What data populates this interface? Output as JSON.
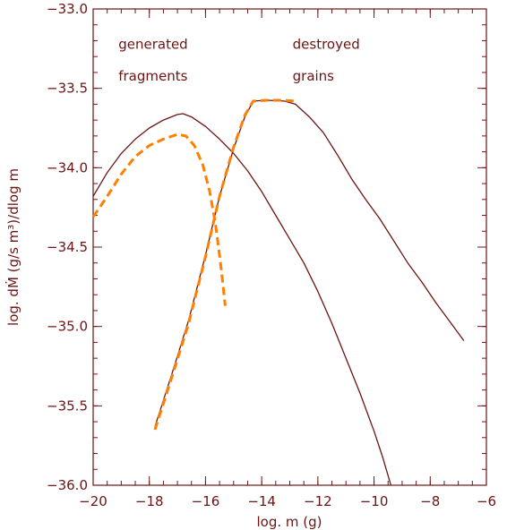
{
  "chart_data": {
    "type": "line",
    "title": "",
    "xlabel": "log. m (g)",
    "ylabel": "log. dṀ (g/s m³)/dlog m",
    "xlim": [
      -20,
      -6
    ],
    "ylim": [
      -36.0,
      -33.0
    ],
    "x_ticks": [
      -20,
      -18,
      -16,
      -14,
      -12,
      -10,
      -8,
      -6
    ],
    "x_tick_labels": [
      "−20",
      "−18",
      "−16",
      "−14",
      "−12",
      "−10",
      "−8",
      "−6"
    ],
    "y_ticks": [
      -33.0,
      -33.5,
      -34.0,
      -34.5,
      -35.0,
      -35.5,
      -36.0
    ],
    "y_tick_labels": [
      "−33.0",
      "−33.5",
      "−34.0",
      "−34.5",
      "−35.0",
      "−35.5",
      "−36.0"
    ],
    "grid": false,
    "annotations": [
      {
        "text": "generated",
        "x": -19.1,
        "y": -33.25
      },
      {
        "text": "fragments",
        "x": -19.1,
        "y": -33.45
      },
      {
        "text": "destroyed",
        "x": -12.9,
        "y": -33.25
      },
      {
        "text": "grains",
        "x": -12.9,
        "y": -33.45
      }
    ],
    "series": [
      {
        "style": "solid",
        "color": "#6b1414",
        "points": [
          [
            -20.0,
            -34.18
          ],
          [
            -19.5,
            -34.03
          ],
          [
            -19.0,
            -33.91
          ],
          [
            -18.5,
            -33.82
          ],
          [
            -18.0,
            -33.75
          ],
          [
            -17.5,
            -33.7
          ],
          [
            -17.0,
            -33.665
          ],
          [
            -16.8,
            -33.66
          ],
          [
            -16.5,
            -33.68
          ],
          [
            -16.0,
            -33.74
          ],
          [
            -15.5,
            -33.82
          ],
          [
            -15.0,
            -33.91
          ],
          [
            -14.5,
            -34.02
          ],
          [
            -14.0,
            -34.15
          ],
          [
            -13.5,
            -34.3
          ],
          [
            -13.0,
            -34.45
          ],
          [
            -12.5,
            -34.6
          ],
          [
            -12.0,
            -34.78
          ],
          [
            -11.5,
            -34.98
          ],
          [
            -11.0,
            -35.2
          ],
          [
            -10.5,
            -35.42
          ],
          [
            -10.0,
            -35.66
          ],
          [
            -9.7,
            -35.82
          ],
          [
            -9.4,
            -36.0
          ]
        ]
      },
      {
        "style": "solid",
        "color": "#6b1414",
        "points": [
          [
            -17.8,
            -35.63
          ],
          [
            -17.2,
            -35.3
          ],
          [
            -16.6,
            -34.96
          ],
          [
            -16.0,
            -34.55
          ],
          [
            -15.5,
            -34.18
          ],
          [
            -15.0,
            -33.88
          ],
          [
            -14.6,
            -33.68
          ],
          [
            -14.3,
            -33.58
          ],
          [
            -13.8,
            -33.575
          ],
          [
            -13.2,
            -33.58
          ],
          [
            -12.8,
            -33.6
          ],
          [
            -12.3,
            -33.68
          ],
          [
            -11.8,
            -33.78
          ],
          [
            -11.3,
            -33.92
          ],
          [
            -10.8,
            -34.07
          ],
          [
            -10.3,
            -34.2
          ],
          [
            -9.8,
            -34.32
          ],
          [
            -9.3,
            -34.46
          ],
          [
            -8.8,
            -34.6
          ],
          [
            -8.3,
            -34.72
          ],
          [
            -7.8,
            -34.85
          ],
          [
            -7.3,
            -34.97
          ],
          [
            -6.8,
            -35.09
          ]
        ]
      },
      {
        "style": "dashed",
        "color": "#ff7f00",
        "points": [
          [
            -20.0,
            -34.31
          ],
          [
            -19.5,
            -34.18
          ],
          [
            -19.0,
            -34.04
          ],
          [
            -18.5,
            -33.93
          ],
          [
            -18.0,
            -33.86
          ],
          [
            -17.5,
            -33.82
          ],
          [
            -17.0,
            -33.79
          ],
          [
            -16.7,
            -33.8
          ],
          [
            -16.4,
            -33.86
          ],
          [
            -16.1,
            -33.98
          ],
          [
            -15.85,
            -34.15
          ],
          [
            -15.65,
            -34.35
          ],
          [
            -15.5,
            -34.55
          ],
          [
            -15.4,
            -34.7
          ],
          [
            -15.3,
            -34.87
          ]
        ]
      },
      {
        "style": "dashed",
        "color": "#ff7f00",
        "points": [
          [
            -17.8,
            -35.65
          ],
          [
            -17.2,
            -35.32
          ],
          [
            -16.6,
            -34.98
          ],
          [
            -16.0,
            -34.56
          ],
          [
            -15.5,
            -34.18
          ],
          [
            -15.0,
            -33.87
          ],
          [
            -14.6,
            -33.67
          ],
          [
            -14.3,
            -33.58
          ],
          [
            -13.8,
            -33.575
          ],
          [
            -13.3,
            -33.575
          ],
          [
            -12.8,
            -33.58
          ]
        ]
      }
    ]
  }
}
